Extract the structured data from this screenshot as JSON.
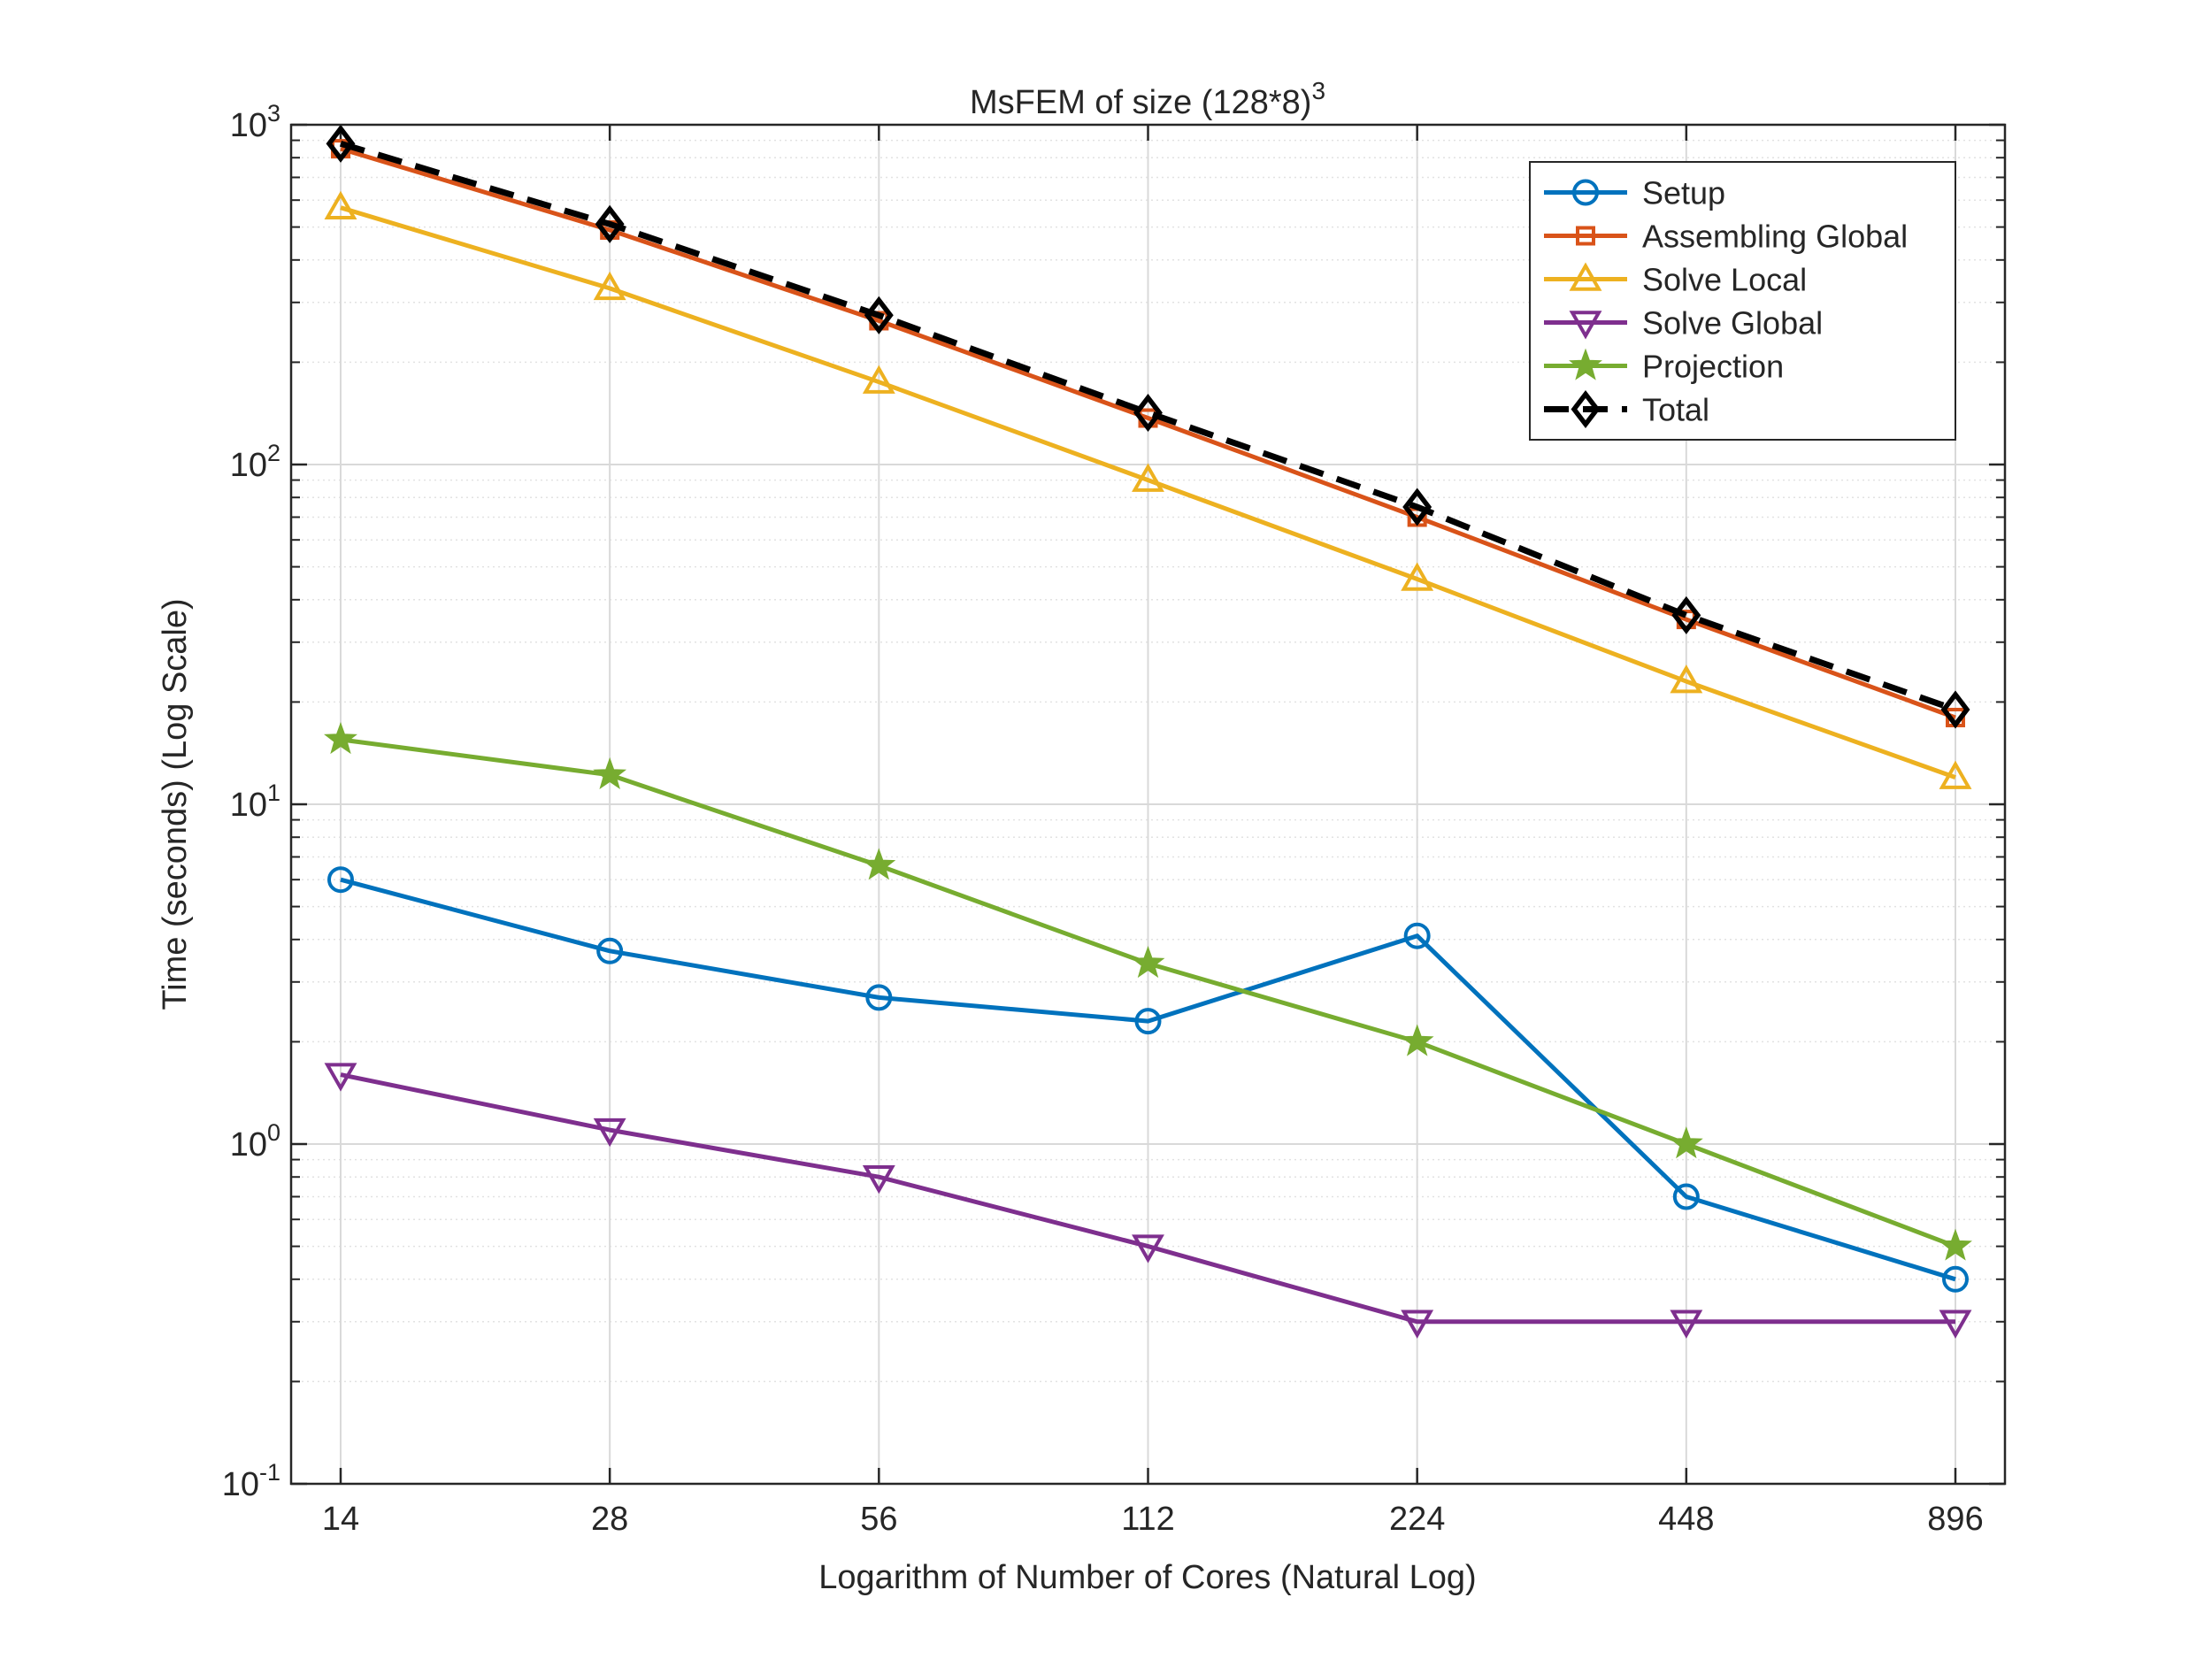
{
  "chart_data": {
    "type": "line",
    "title": "MsFEM of size (128*8)",
    "title_superscript": "3",
    "xlabel": "Logarithm of Number of Cores (Natural Log)",
    "ylabel": "Time (seconds) (Log Scale)",
    "x_scale": "log",
    "y_scale": "log",
    "x": [
      14,
      28,
      56,
      112,
      224,
      448,
      896
    ],
    "x_tick_labels": [
      "14",
      "28",
      "56",
      "112",
      "224",
      "448",
      "896"
    ],
    "ylim": [
      0.1,
      1000
    ],
    "y_ticks": [
      {
        "value": 0.1,
        "base": "10",
        "exp": "-1"
      },
      {
        "value": 1,
        "base": "10",
        "exp": "0"
      },
      {
        "value": 10,
        "base": "10",
        "exp": "1"
      },
      {
        "value": 100,
        "base": "10",
        "exp": "2"
      },
      {
        "value": 1000,
        "base": "10",
        "exp": "3"
      }
    ],
    "grid": true,
    "minor_grid": true,
    "legend_position": "top-right",
    "series": [
      {
        "name": "Setup",
        "color": "#0072BD",
        "marker": "circle",
        "dashed": false,
        "values": [
          6.0,
          3.7,
          2.7,
          2.3,
          4.1,
          0.7,
          0.4
        ]
      },
      {
        "name": "Assembling Global",
        "color": "#D95319",
        "marker": "square",
        "dashed": false,
        "values": [
          850,
          490,
          265,
          137,
          70,
          35,
          18
        ]
      },
      {
        "name": "Solve Local",
        "color": "#EDB120",
        "marker": "triangle-up",
        "dashed": false,
        "values": [
          570,
          330,
          175,
          90,
          46,
          23,
          12
        ]
      },
      {
        "name": "Solve Global",
        "color": "#7E2F8E",
        "marker": "triangle-down",
        "dashed": false,
        "values": [
          1.6,
          1.1,
          0.8,
          0.5,
          0.3,
          0.3,
          0.3
        ]
      },
      {
        "name": "Projection",
        "color": "#77AC30",
        "marker": "star",
        "dashed": false,
        "values": [
          15.5,
          12.2,
          6.6,
          3.4,
          2.0,
          1.0,
          0.5
        ]
      },
      {
        "name": "Total",
        "color": "#000000",
        "marker": "diamond",
        "dashed": true,
        "values": [
          880,
          510,
          275,
          142,
          75,
          36,
          19
        ]
      }
    ]
  }
}
